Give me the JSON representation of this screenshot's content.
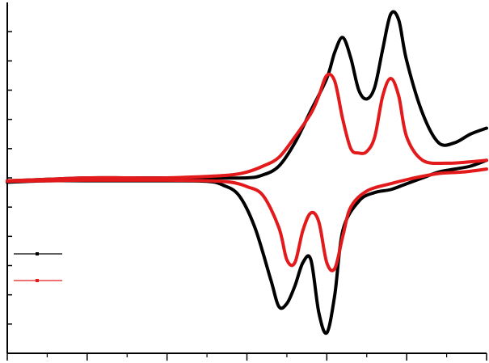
{
  "chart_data": {
    "type": "line",
    "title": "",
    "xlabel": "",
    "ylabel": "",
    "xlim": [
      0,
      60
    ],
    "ylim": [
      -6,
      6
    ],
    "x_major_ticks": [
      0,
      10,
      20,
      30,
      40,
      50,
      60
    ],
    "x_minor_ticks": [
      5,
      15,
      25,
      35,
      45,
      55
    ],
    "y_ticks": [
      -5,
      -4,
      -3,
      -2,
      -1,
      0,
      1,
      2,
      3,
      4,
      5
    ],
    "legend": {
      "placement": "left",
      "show_labels": false
    },
    "series": [
      {
        "color": "#000000",
        "forward": [
          [
            0,
            -0.1
          ],
          [
            5,
            -0.05
          ],
          [
            10,
            0.0
          ],
          [
            15,
            0.0
          ],
          [
            20,
            0.0
          ],
          [
            25,
            0.0
          ],
          [
            30,
            0.0
          ],
          [
            32,
            0.1
          ],
          [
            34,
            0.4
          ],
          [
            36,
            1.2
          ],
          [
            38,
            2.3
          ],
          [
            40,
            3.4
          ],
          [
            41,
            4.3
          ],
          [
            42,
            4.8
          ],
          [
            43,
            4.1
          ],
          [
            44,
            3.0
          ],
          [
            45,
            2.7
          ],
          [
            46,
            3.1
          ],
          [
            47,
            4.4
          ],
          [
            48,
            5.6
          ],
          [
            49,
            5.4
          ],
          [
            50,
            4.0
          ],
          [
            52,
            2.2
          ],
          [
            54,
            1.2
          ],
          [
            56,
            1.2
          ],
          [
            58,
            1.5
          ],
          [
            60,
            1.7
          ]
        ],
        "reverse": [
          [
            60,
            0.6
          ],
          [
            58,
            0.4
          ],
          [
            56,
            0.3
          ],
          [
            54,
            0.2
          ],
          [
            52,
            0.0
          ],
          [
            50,
            -0.2
          ],
          [
            48,
            -0.4
          ],
          [
            46,
            -0.5
          ],
          [
            44,
            -0.8
          ],
          [
            42,
            -1.8
          ],
          [
            41,
            -4.0
          ],
          [
            40,
            -5.3
          ],
          [
            39,
            -4.6
          ],
          [
            38,
            -2.8
          ],
          [
            37,
            -2.9
          ],
          [
            36,
            -3.7
          ],
          [
            35,
            -4.3
          ],
          [
            34,
            -4.4
          ],
          [
            33,
            -3.5
          ],
          [
            31,
            -1.7
          ],
          [
            29,
            -0.6
          ],
          [
            27,
            -0.25
          ],
          [
            25,
            -0.12
          ],
          [
            20,
            -0.1
          ],
          [
            10,
            -0.1
          ],
          [
            5,
            -0.1
          ],
          [
            0,
            -0.15
          ]
        ]
      },
      {
        "color": "#e31a1c",
        "forward": [
          [
            0,
            -0.1
          ],
          [
            5,
            -0.05
          ],
          [
            10,
            0.0
          ],
          [
            15,
            0.0
          ],
          [
            20,
            0.0
          ],
          [
            25,
            0.05
          ],
          [
            28,
            0.1
          ],
          [
            30,
            0.2
          ],
          [
            32,
            0.4
          ],
          [
            34,
            0.7
          ],
          [
            36,
            1.4
          ],
          [
            38,
            2.2
          ],
          [
            39,
            2.8
          ],
          [
            40,
            3.5
          ],
          [
            41,
            3.3
          ],
          [
            42,
            2.0
          ],
          [
            43,
            1.0
          ],
          [
            44,
            0.85
          ],
          [
            45,
            0.9
          ],
          [
            46,
            1.4
          ],
          [
            47,
            2.8
          ],
          [
            48,
            3.4
          ],
          [
            49,
            2.8
          ],
          [
            50,
            1.4
          ],
          [
            52,
            0.6
          ],
          [
            55,
            0.5
          ],
          [
            58,
            0.55
          ],
          [
            60,
            0.6
          ]
        ],
        "reverse": [
          [
            60,
            0.3
          ],
          [
            57,
            0.2
          ],
          [
            54,
            0.15
          ],
          [
            51,
            0.0
          ],
          [
            48,
            -0.2
          ],
          [
            45,
            -0.45
          ],
          [
            43,
            -1.0
          ],
          [
            42,
            -2.0
          ],
          [
            41,
            -3.1
          ],
          [
            40,
            -2.9
          ],
          [
            39,
            -1.5
          ],
          [
            38,
            -1.2
          ],
          [
            37,
            -1.8
          ],
          [
            36,
            -2.9
          ],
          [
            35,
            -2.8
          ],
          [
            34,
            -1.7
          ],
          [
            32,
            -0.6
          ],
          [
            30,
            -0.3
          ],
          [
            28,
            -0.15
          ],
          [
            25,
            -0.1
          ],
          [
            20,
            -0.08
          ],
          [
            10,
            -0.08
          ],
          [
            5,
            -0.1
          ],
          [
            0,
            -0.12
          ]
        ]
      }
    ]
  }
}
